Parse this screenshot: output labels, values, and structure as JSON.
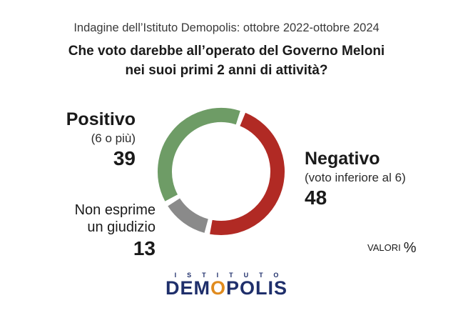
{
  "header": {
    "source": "Indagine dell’Istituto Demopolis: ottobre 2022-ottobre 2024",
    "title_line1": "Che voto darebbe all’operato del Governo Meloni",
    "title_line2": "nei suoi primi 2 anni di attività?"
  },
  "chart_data": {
    "type": "pie",
    "variant": "donut",
    "categories": [
      "Positivo",
      "Negativo",
      "Non esprime un giudizio"
    ],
    "values": [
      39,
      48,
      13
    ],
    "sublabels": [
      "(6 o più)",
      "(voto inferiore al 6)",
      ""
    ],
    "colors": [
      "#6e9c66",
      "#b12a24",
      "#8a8a8a"
    ],
    "units": "VALORI %"
  },
  "labels": {
    "positive_name": "Positivo",
    "positive_sub": "(6 o più)",
    "positive_val": "39",
    "negative_name": "Negativo",
    "negative_sub": "(voto inferiore al 6)",
    "negative_val": "48",
    "none_line1": "Non esprime",
    "none_line2": "un giudizio",
    "none_val": "13"
  },
  "footer": {
    "units_word": "VALORI",
    "units_symbol": "%",
    "logo_top": "ISTITUTO",
    "logo_main_pre": "DEM",
    "logo_main_o": "O",
    "logo_main_post": "POLIS"
  }
}
